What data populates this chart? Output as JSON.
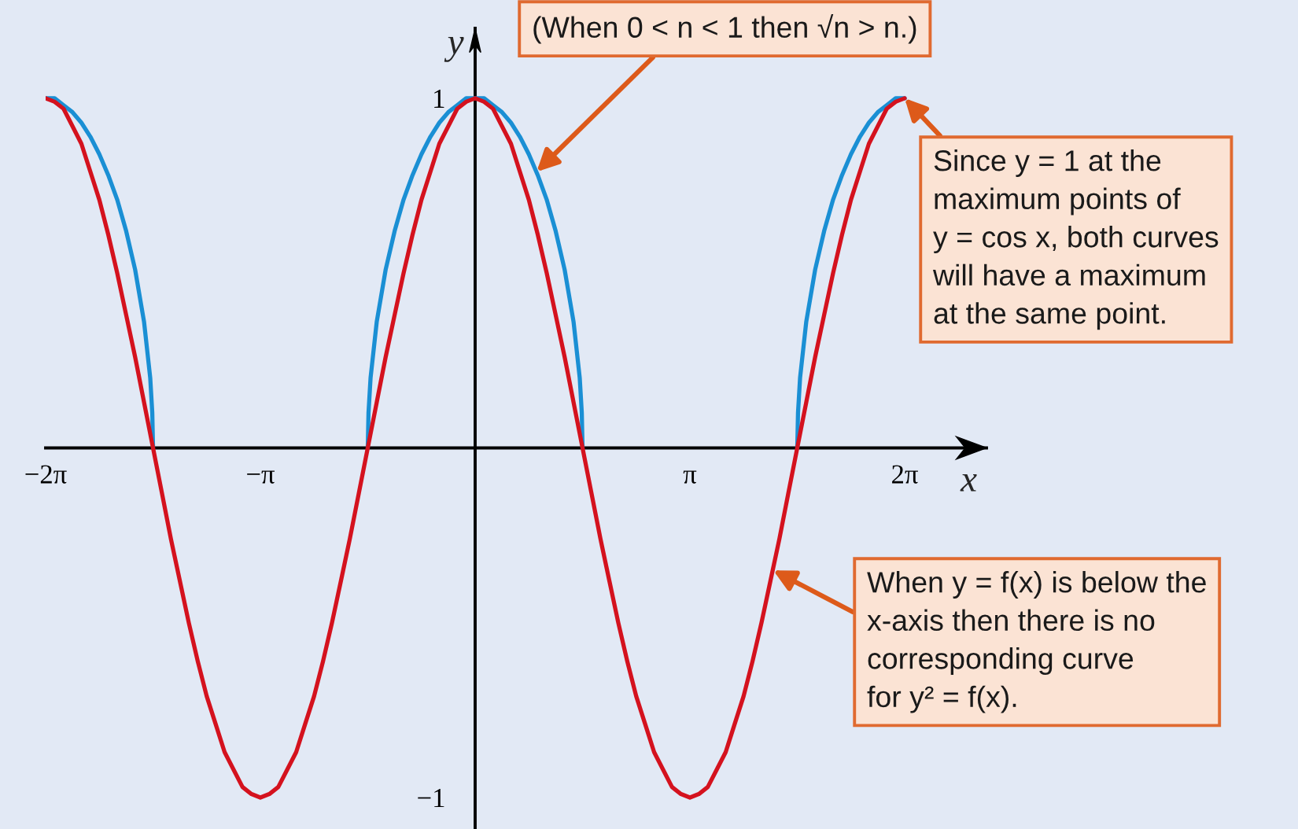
{
  "chart_data": {
    "type": "line",
    "xlabel": "x",
    "ylabel": "y",
    "xlim": [
      -6.2832,
      7.48
    ],
    "ylim": [
      -1.09,
      1.2
    ],
    "xticks": [
      {
        "value": -6.2832,
        "label": "−2π"
      },
      {
        "value": -3.1416,
        "label": "−π"
      },
      {
        "value": 3.1416,
        "label": "π"
      },
      {
        "value": 6.2832,
        "label": "2π"
      }
    ],
    "yticks": [
      {
        "value": -1,
        "label": "−1"
      },
      1
    ],
    "series": [
      {
        "color": "#1a8fd4",
        "x": [
          -6.283,
          -6.152,
          -6.021,
          -5.89,
          -5.76,
          -5.629,
          -5.498,
          -5.367,
          -5.236,
          -5.105,
          -4.974,
          -4.843,
          -4.753,
          -4.723,
          -4.712,
          -3.142,
          -1.571,
          -1.56,
          -1.53,
          -1.44,
          -1.309,
          -1.178,
          -1.047,
          -0.916,
          -0.785,
          -0.654,
          -0.524,
          -0.393,
          -0.262,
          -0.131,
          0,
          0.131,
          0.262,
          0.393,
          0.524,
          0.654,
          0.785,
          0.916,
          1.047,
          1.178,
          1.309,
          1.44,
          1.53,
          1.56,
          1.571,
          3.142,
          4.712,
          4.723,
          4.753,
          4.843,
          4.974,
          5.105,
          5.236,
          5.367,
          5.498,
          5.629,
          5.76,
          5.89,
          6.021,
          6.152,
          6.283
        ],
        "values": [
          1,
          1.0,
          0.98,
          0.96,
          0.93,
          0.89,
          0.84,
          0.78,
          0.71,
          0.62,
          0.51,
          0.36,
          0.2,
          0.1,
          0,
          null,
          0,
          0.1,
          0.2,
          0.36,
          0.51,
          0.62,
          0.71,
          0.78,
          0.84,
          0.89,
          0.93,
          0.96,
          0.98,
          1.0,
          1,
          1.0,
          0.98,
          0.96,
          0.93,
          0.89,
          0.84,
          0.78,
          0.71,
          0.62,
          0.51,
          0.36,
          0.2,
          0.1,
          0,
          null,
          0,
          0.1,
          0.2,
          0.36,
          0.51,
          0.62,
          0.71,
          0.78,
          0.84,
          0.89,
          0.93,
          0.96,
          0.98,
          1.0,
          1
        ]
      },
      {
        "color": "#d4121e",
        "x": [
          -6.283,
          -6.152,
          -6.021,
          -5.89,
          -5.76,
          -5.629,
          -5.498,
          -5.367,
          -5.236,
          -5.105,
          -4.974,
          -4.843,
          -4.712,
          -4.581,
          -4.451,
          -4.32,
          -4.189,
          -4.058,
          -3.927,
          -3.796,
          -3.665,
          -3.534,
          -3.403,
          -3.272,
          -3.142,
          -3.011,
          -2.88,
          -2.749,
          -2.618,
          -2.487,
          -2.356,
          -2.225,
          -2.094,
          -1.963,
          -1.833,
          -1.702,
          -1.571,
          -1.44,
          -1.309,
          -1.178,
          -1.047,
          -0.916,
          -0.785,
          -0.654,
          -0.524,
          -0.393,
          -0.262,
          -0.131,
          0,
          0.131,
          0.262,
          0.393,
          0.524,
          0.654,
          0.785,
          0.916,
          1.047,
          1.178,
          1.309,
          1.44,
          1.571,
          1.702,
          1.833,
          1.963,
          2.094,
          2.225,
          2.356,
          2.487,
          2.618,
          2.749,
          2.88,
          3.011,
          3.142,
          3.272,
          3.403,
          3.534,
          3.665,
          3.796,
          3.927,
          4.058,
          4.189,
          4.32,
          4.451,
          4.581,
          4.712,
          4.843,
          4.974,
          5.105,
          5.236,
          5.367,
          5.498,
          5.629,
          5.76,
          5.89,
          6.021,
          6.152,
          6.283
        ],
        "values": [
          1,
          0.99,
          0.97,
          0.92,
          0.87,
          0.79,
          0.71,
          0.61,
          0.5,
          0.38,
          0.26,
          0.13,
          0,
          -0.13,
          -0.26,
          -0.38,
          -0.5,
          -0.61,
          -0.71,
          -0.79,
          -0.87,
          -0.92,
          -0.97,
          -0.99,
          -1,
          -0.99,
          -0.97,
          -0.92,
          -0.87,
          -0.79,
          -0.71,
          -0.61,
          -0.5,
          -0.38,
          -0.26,
          -0.13,
          0,
          0.13,
          0.26,
          0.38,
          0.5,
          0.61,
          0.71,
          0.79,
          0.87,
          0.92,
          0.97,
          0.99,
          1,
          0.99,
          0.97,
          0.92,
          0.87,
          0.79,
          0.71,
          0.61,
          0.5,
          0.38,
          0.26,
          0.13,
          0,
          -0.13,
          -0.26,
          -0.38,
          -0.5,
          -0.61,
          -0.71,
          -0.79,
          -0.87,
          -0.92,
          -0.97,
          -0.99,
          -1,
          -0.99,
          -0.97,
          -0.92,
          -0.87,
          -0.79,
          -0.71,
          -0.61,
          -0.5,
          -0.38,
          -0.26,
          -0.13,
          0,
          0.13,
          0.26,
          0.38,
          0.5,
          0.61,
          0.71,
          0.79,
          0.87,
          0.92,
          0.97,
          0.99,
          1
        ]
      }
    ],
    "annotations": [
      {
        "text": "(When 0 < n < 1 then √n > n.)",
        "x": 0.9,
        "y": 0.79
      },
      {
        "text": "Since y = 1 at the\nmaximum points of\ny = cos x, both curves\nwill have a maximum\nat the same point.",
        "x": 6.283,
        "y": 1
      },
      {
        "text": "When y = f(x) is below the\nx-axis then there is no\ncorresponding curve\nfor y² = f(x).",
        "x": 4.36,
        "y": -0.35
      }
    ]
  }
}
